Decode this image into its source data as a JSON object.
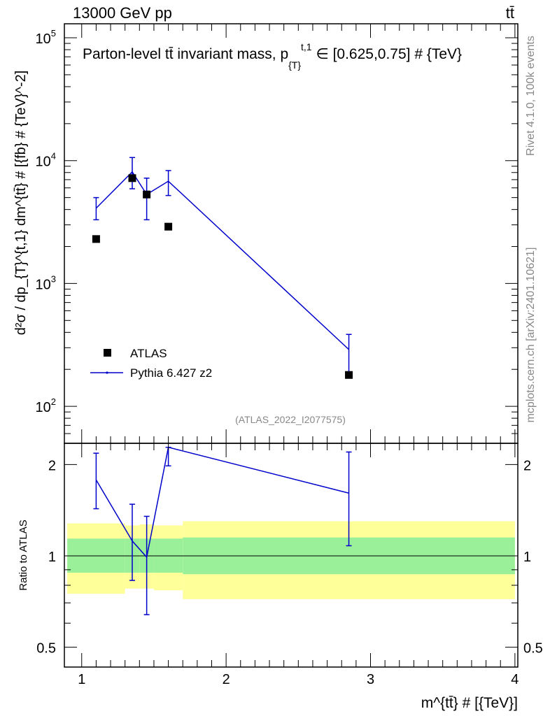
{
  "header": {
    "left": "13000 GeV pp",
    "right": "tt̄",
    "side_top": "Rivet 4.1.0,  100k events",
    "side_bottom": "mcplots.cern.ch [arXiv:2401.10621]"
  },
  "chart_data": [
    {
      "type": "scatter",
      "panel": "main",
      "title_main": "Parton-level tt̄ invariant mass, p",
      "title_sub": "{T}",
      "title_sup": "t,1",
      "title_tail": " ∈ [0.625,0.75] # {TeV}",
      "ylabel": "d²σ / dp_{T}^{t,1} dm^{tt̄} # [{fb} # {TeV}^-2]",
      "yscale": "log",
      "ylim": [
        50,
        130000
      ],
      "xlim": [
        0.88,
        4.02
      ],
      "yticks": [
        {
          "value": 100,
          "base": "10",
          "exp": "2"
        },
        {
          "value": 1000,
          "base": "10",
          "exp": "3"
        },
        {
          "value": 10000,
          "base": "10",
          "exp": "4"
        },
        {
          "value": 100000,
          "base": "10",
          "exp": "5"
        }
      ],
      "watermark": "(ATLAS_2022_I2077575)",
      "legend_position": "lower-left",
      "series": [
        {
          "name": "ATLAS",
          "style": "markers",
          "color": "#000000",
          "x": [
            1.1,
            1.35,
            1.45,
            1.6,
            2.85
          ],
          "y": [
            2300,
            7200,
            5300,
            2900,
            180
          ]
        },
        {
          "name": "Pythia 6.427 z2",
          "style": "line",
          "color": "#0000cc",
          "x": [
            1.1,
            1.35,
            1.45,
            1.6,
            2.85
          ],
          "y": [
            4100,
            8100,
            5300,
            6800,
            290
          ],
          "yerr_low": [
            3300,
            5900,
            3300,
            5200,
            190
          ],
          "yerr_high": [
            5000,
            10600,
            7200,
            8300,
            385
          ]
        }
      ]
    },
    {
      "type": "line",
      "panel": "ratio",
      "ylabel": "Ratio to ATLAS",
      "xlabel": "m^{tt̄} # [{TeV}]",
      "yscale": "log",
      "ylim": [
        0.43,
        2.35
      ],
      "xlim": [
        0.88,
        4.02
      ],
      "yticks": [
        0.5,
        1,
        2
      ],
      "xticks": [
        1,
        2,
        3,
        4
      ],
      "bands": {
        "x_edges": [
          0.9,
          1.3,
          1.4,
          1.5,
          1.7,
          4.0
        ],
        "inner_low": [
          0.88,
          0.88,
          0.88,
          0.88,
          0.87
        ],
        "inner_high": [
          1.14,
          1.14,
          1.14,
          1.14,
          1.15
        ],
        "outer_low": [
          0.75,
          0.78,
          0.78,
          0.77,
          0.72
        ],
        "outer_high": [
          1.28,
          1.26,
          1.27,
          1.26,
          1.3
        ],
        "inner_color": "#99f099",
        "outer_color": "#ffff99"
      },
      "series": [
        {
          "name": "Pythia 6.427 z2",
          "color": "#0000cc",
          "x": [
            1.1,
            1.35,
            1.45,
            1.6,
            2.85
          ],
          "y": [
            1.78,
            1.12,
            0.99,
            2.28,
            1.61
          ],
          "yerr_low": [
            1.43,
            0.83,
            0.64,
            1.98,
            1.08
          ],
          "yerr_high": [
            2.18,
            1.48,
            1.35,
            2.28,
            2.2
          ]
        }
      ]
    }
  ]
}
